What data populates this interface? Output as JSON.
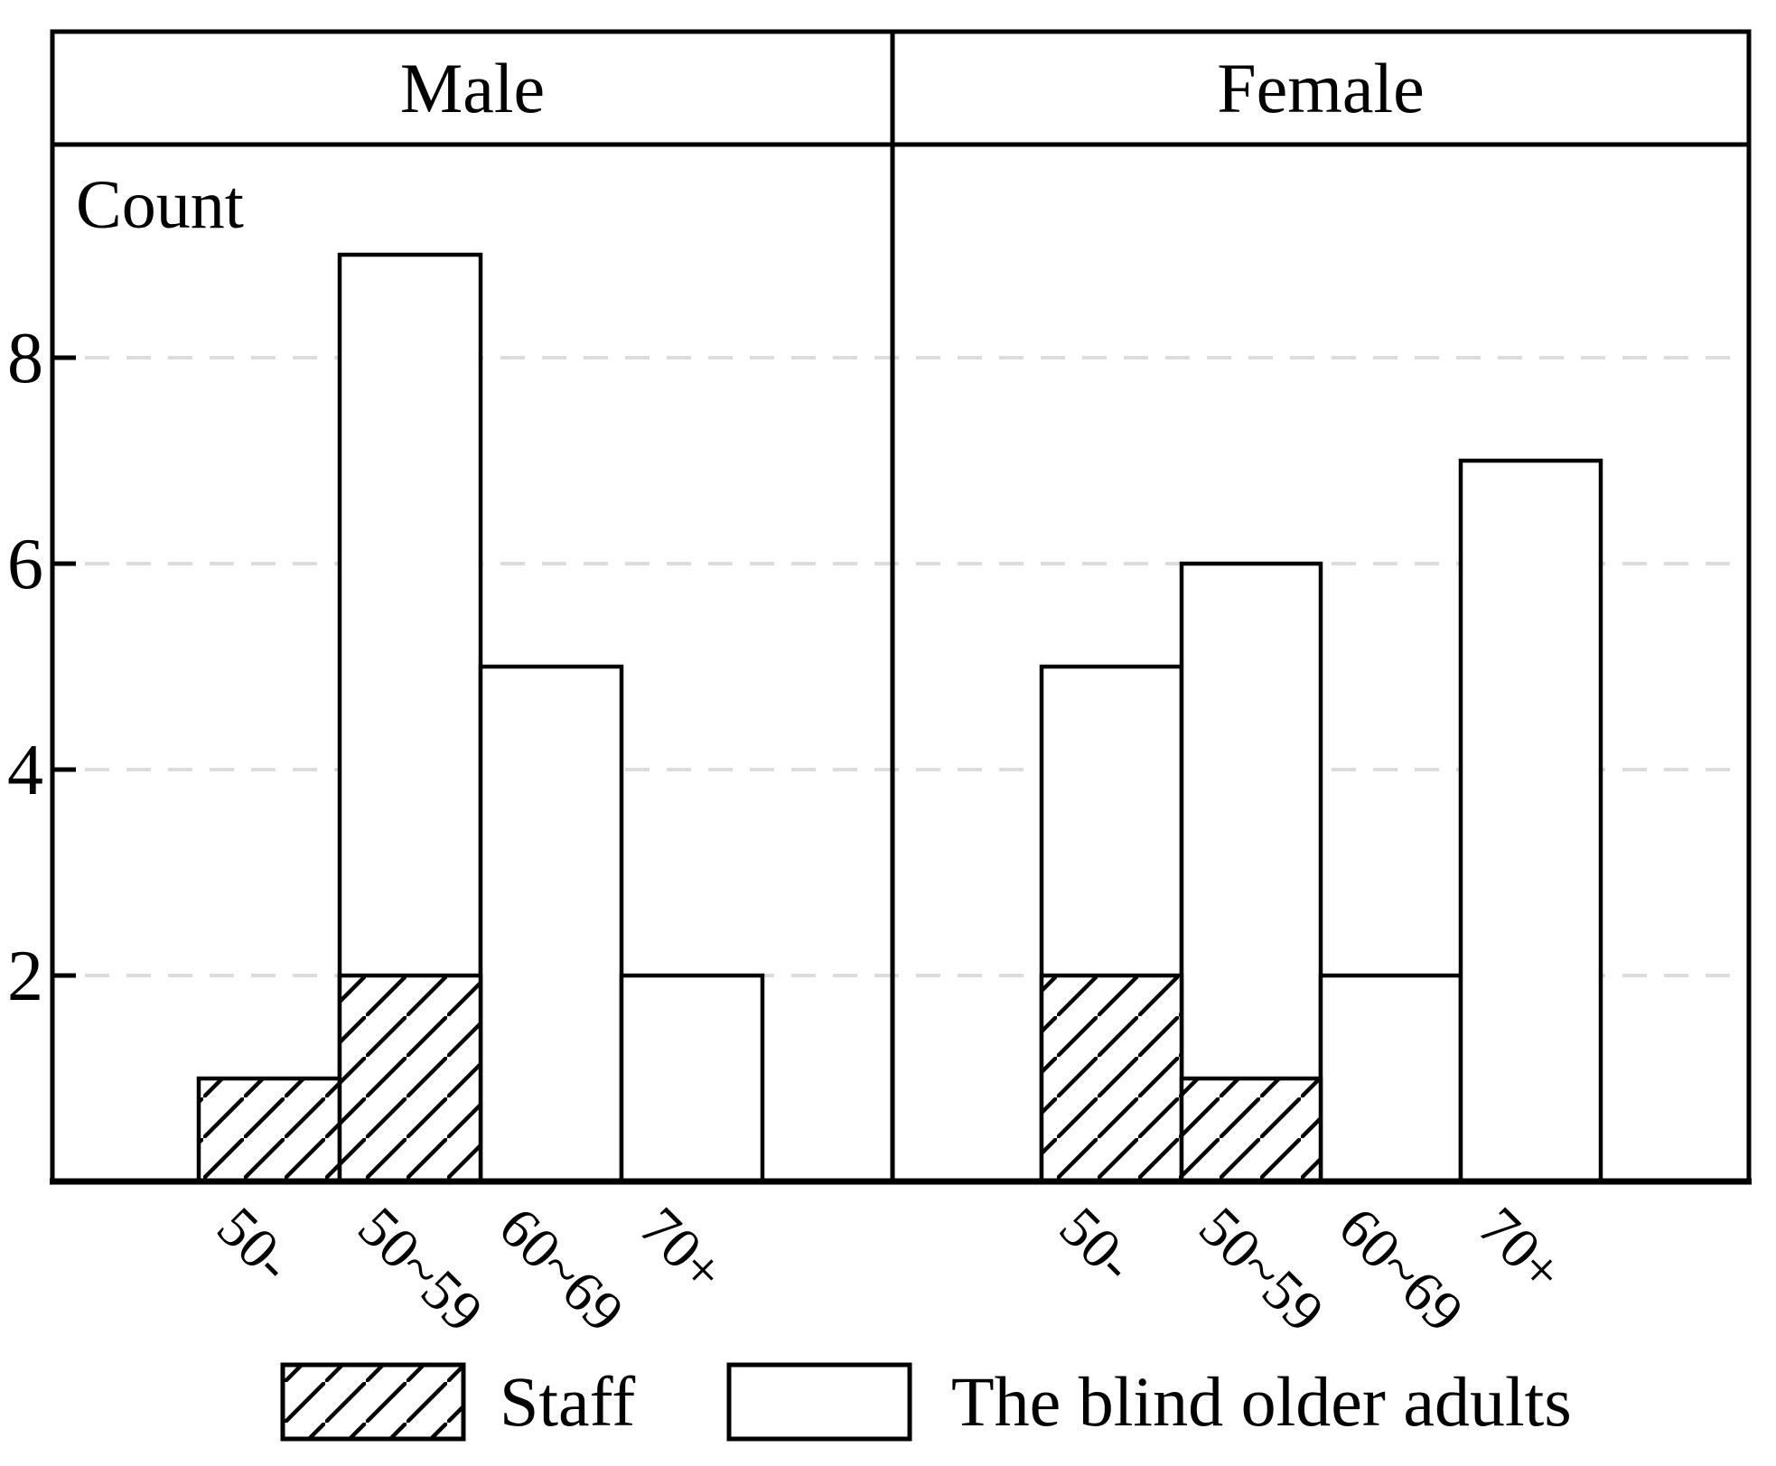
{
  "chart_data": {
    "type": "bar",
    "title": "",
    "ylabel": "Count",
    "xlabel": "",
    "y_ticks": [
      2,
      4,
      6,
      8
    ],
    "ylim": [
      0,
      9.6
    ],
    "grid": "horizontal-dashed",
    "legend_position": "bottom",
    "panels": [
      {
        "label": "Male",
        "categories": [
          "50-",
          "50~59",
          "60~69",
          "70+"
        ],
        "series": [
          {
            "name": "Staff",
            "style": "hatched",
            "values": [
              1,
              2,
              0,
              0
            ]
          },
          {
            "name": "The blind older adults",
            "style": "white",
            "values": [
              0,
              9,
              5,
              2
            ]
          }
        ]
      },
      {
        "label": "Female",
        "categories": [
          "50-",
          "50~59",
          "60~69",
          "70+"
        ],
        "series": [
          {
            "name": "Staff",
            "style": "hatched",
            "values": [
              2,
              1,
              0,
              0
            ]
          },
          {
            "name": "The blind older adults",
            "style": "white",
            "values": [
              5,
              6,
              2,
              7
            ]
          }
        ]
      }
    ],
    "legend": [
      {
        "label": "Staff",
        "swatch": "hatched"
      },
      {
        "label": "The blind older adults",
        "swatch": "white"
      }
    ],
    "colors": {
      "ink": "#000000",
      "background": "#ffffff",
      "gridline": "#dcdcdc"
    }
  }
}
